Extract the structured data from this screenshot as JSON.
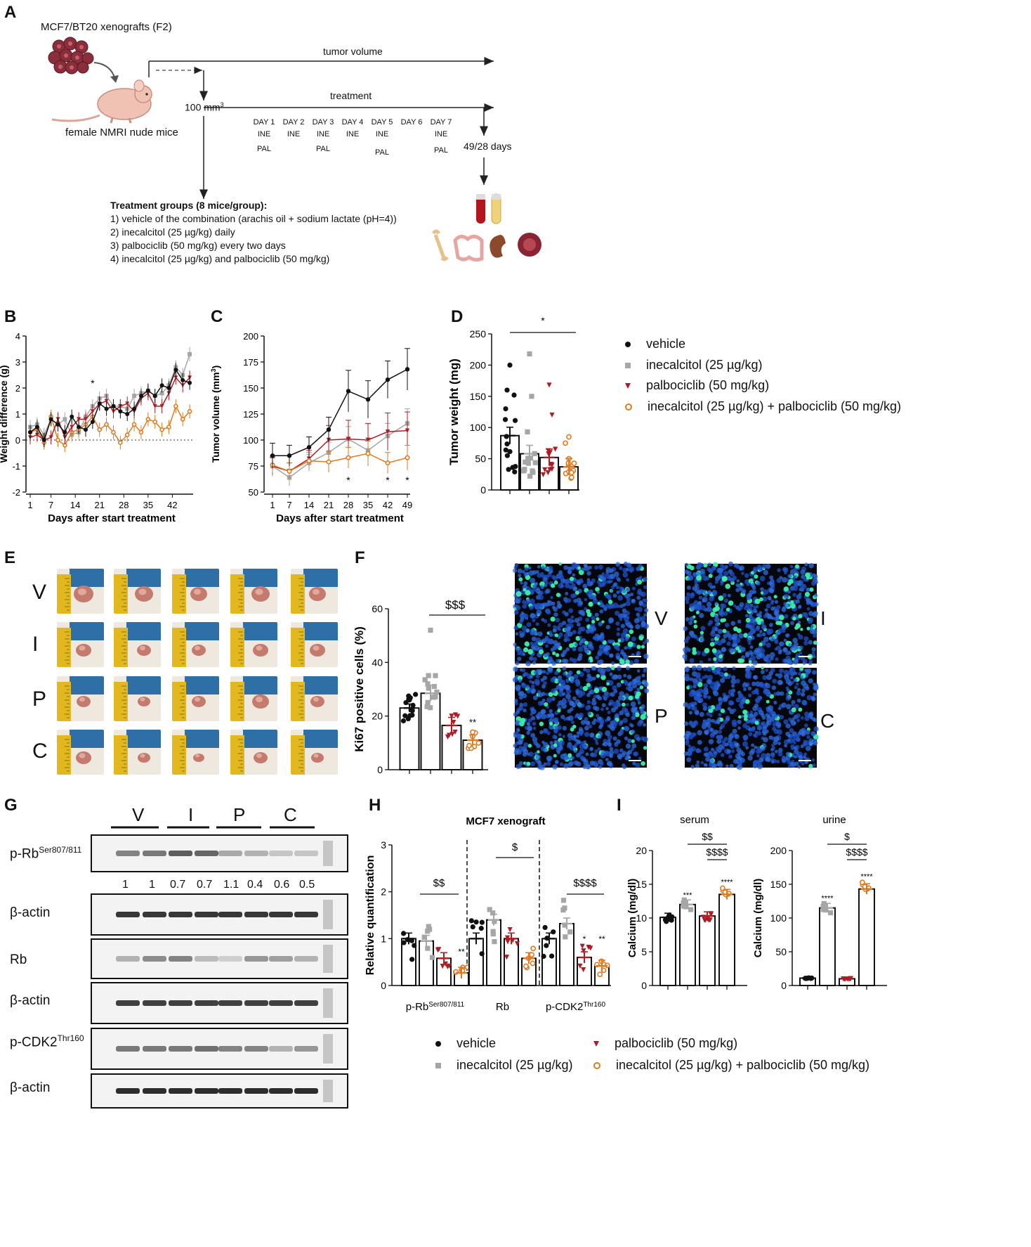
{
  "panels": {
    "A": "A",
    "B": "B",
    "C": "C",
    "D": "D",
    "E": "E",
    "F": "F",
    "G": "G",
    "H": "H",
    "I": "I"
  },
  "schematic": {
    "model": "MCF7/BT20 xenografts (F2)",
    "mice": "female NMRI nude mice",
    "tumor_volume": "tumor volume",
    "treatment": "treatment",
    "start_volume": "100 mm",
    "start_volume_sup": "3",
    "end_days": "49/28 days",
    "days": [
      {
        "day": "DAY 1",
        "line1": "INE",
        "line2": "PAL"
      },
      {
        "day": "DAY 2",
        "line1": "INE",
        "line2": ""
      },
      {
        "day": "DAY 3",
        "line1": "INE",
        "line2": "PAL"
      },
      {
        "day": "DAY 4",
        "line1": "INE",
        "line2": ""
      },
      {
        "day": "DAY 5",
        "line1": "INE",
        "line2": "PAL"
      },
      {
        "day": "DAY 6",
        "line1": "",
        "line2": ""
      },
      {
        "day": "DAY 7",
        "line1": "INE",
        "line2": "PAL"
      }
    ],
    "groups_title": "Treatment groups (8 mice/group):",
    "groups": [
      "1) vehicle of the combination (arachis oil + sodium lactate (pH=4))",
      "2) inecalcitol (25 µg/kg) daily",
      "3) palbociclib (50 mg/kg) every two days",
      "4) inecalcitol (25 µg/kg) and palbociclib (50 mg/kg)"
    ]
  },
  "legend": {
    "vehicle": "vehicle",
    "inecalcitol": "inecalcitol (25 µg/kg)",
    "palbociclib": "palbociclib (50 mg/kg)",
    "combination": "inecalcitol (25 µg/kg) + palbociclib (50 mg/kg)"
  },
  "colors": {
    "vehicle": "#111111",
    "inecalcitol": "#a6a6a6",
    "palbociclib": "#b01c23",
    "combination": "#e07a1f"
  },
  "photo_rows": [
    "V",
    "I",
    "P",
    "C"
  ],
  "micro_labels": [
    "V",
    "I",
    "P",
    "C"
  ],
  "western": {
    "lanes": [
      "V",
      "I",
      "P",
      "C"
    ],
    "rows": [
      {
        "label": "p-Rb",
        "sup": "Ser807/811"
      },
      {
        "label": "β-actin",
        "sup": ""
      },
      {
        "label": "Rb",
        "sup": ""
      },
      {
        "label": "β-actin",
        "sup": ""
      },
      {
        "label": "p-CDK2",
        "sup": "Thr160"
      },
      {
        "label": "β-actin",
        "sup": ""
      }
    ],
    "quant": [
      "1",
      "1",
      "0.7",
      "0.7",
      "1.1",
      "0.4",
      "0.6",
      "0.5"
    ]
  },
  "chart_data": [
    {
      "id": "B",
      "type": "line",
      "xlabel": "Days after start treatment",
      "ylabel": "Weight difference (g)",
      "xlim": [
        1,
        48
      ],
      "ylim": [
        -2,
        4
      ],
      "xticks": [
        1,
        7,
        14,
        21,
        28,
        35,
        42
      ],
      "yticks": [
        -2,
        -1,
        0,
        1,
        2,
        3,
        4
      ],
      "x": [
        1,
        3,
        5,
        7,
        9,
        11,
        13,
        15,
        17,
        19,
        21,
        23,
        25,
        27,
        29,
        31,
        33,
        35,
        37,
        39,
        41,
        43,
        45,
        47
      ],
      "series": [
        {
          "name": "vehicle",
          "values": [
            0.3,
            0.5,
            0,
            0.8,
            0.6,
            0.3,
            0.9,
            0.5,
            0.4,
            0.7,
            1.4,
            1.2,
            1.3,
            1.1,
            1.0,
            1.2,
            1.7,
            1.9,
            1.7,
            2.1,
            2.0,
            2.7,
            2.3,
            2.2
          ]
        },
        {
          "name": "inecalcitol",
          "values": [
            0.5,
            0.6,
            0.2,
            0.8,
            0.6,
            0.8,
            0.2,
            0.3,
            0.9,
            1.3,
            1.6,
            1.7,
            1.3,
            1.3,
            1.2,
            1.7,
            1.8,
            1.9,
            1.7,
            1.8,
            2.1,
            2.8,
            2.5,
            3.3
          ]
        },
        {
          "name": "palbociclib",
          "values": [
            0.1,
            0.2,
            0.0,
            0.1,
            0.8,
            0.1,
            0.5,
            0.8,
            0.8,
            1.1,
            1.4,
            1.5,
            1.1,
            1.3,
            1.4,
            1.1,
            1.6,
            1.8,
            1.3,
            1.3,
            1.8,
            2.4,
            2.1,
            2.4
          ]
        },
        {
          "name": "combination",
          "values": [
            0.3,
            0.4,
            -0.1,
            0.9,
            0.0,
            -0.2,
            0.3,
            0.4,
            0.6,
            0.9,
            0.4,
            0.6,
            0.3,
            -0.1,
            0.2,
            0.6,
            0.3,
            0.8,
            0.7,
            0.4,
            0.5,
            1.3,
            0.8,
            1.1
          ]
        }
      ],
      "annotations": [
        "*"
      ]
    },
    {
      "id": "C",
      "type": "line",
      "xlabel": "Days after start treatment",
      "ylabel": "Tumor volume (mm3)",
      "ylim": [
        50,
        200
      ],
      "x": [
        1,
        7,
        14,
        21,
        28,
        35,
        42,
        49
      ],
      "series": [
        {
          "name": "vehicle",
          "values": [
            85,
            85,
            93,
            110,
            147,
            139,
            158,
            168
          ]
        },
        {
          "name": "inecalcitol",
          "values": [
            75,
            64,
            78,
            88,
            101,
            90,
            104,
            116
          ]
        },
        {
          "name": "palbociclib",
          "values": [
            75,
            70,
            82,
            100,
            101,
            100,
            108,
            109
          ]
        },
        {
          "name": "combination",
          "values": [
            76,
            70,
            80,
            79,
            83,
            87,
            78,
            83
          ]
        }
      ],
      "annotations": [
        "*",
        "*",
        "*"
      ]
    },
    {
      "id": "D",
      "type": "bar",
      "ylabel": "Tumor weight (mg)",
      "ylim": [
        0,
        250
      ],
      "yticks": [
        0,
        50,
        100,
        150,
        200,
        250
      ],
      "series": [
        {
          "name": "vehicle",
          "values": [
            87
          ]
        },
        {
          "name": "inecalcitol",
          "values": [
            58
          ]
        },
        {
          "name": "palbociclib",
          "values": [
            52
          ]
        },
        {
          "name": "combination",
          "values": [
            37
          ]
        }
      ],
      "annotations": [
        "*"
      ]
    },
    {
      "id": "F",
      "type": "bar",
      "ylabel": "Ki67 positive cells (%)",
      "ylim": [
        0,
        60
      ],
      "yticks": [
        0,
        20,
        40,
        60
      ],
      "series": [
        {
          "name": "vehicle",
          "values": [
            23
          ]
        },
        {
          "name": "inecalcitol",
          "values": [
            28.5
          ]
        },
        {
          "name": "palbociclib",
          "values": [
            16.5
          ]
        },
        {
          "name": "combination",
          "values": [
            11
          ]
        }
      ],
      "annotations": [
        "$$$",
        "**"
      ]
    },
    {
      "id": "H",
      "type": "bar",
      "title": "MCF7 xenograft",
      "ylabel": "Relative quantification",
      "ylim": [
        0,
        3
      ],
      "yticks": [
        0,
        1,
        2,
        3
      ],
      "categories": [
        "p-Rb",
        "Rb",
        "p-CDK2"
      ],
      "category_sups": [
        "Ser807/811",
        "",
        "Thr160"
      ],
      "series": [
        {
          "name": "vehicle",
          "values": [
            1.0,
            1.0,
            1.0
          ]
        },
        {
          "name": "inecalcitol",
          "values": [
            0.95,
            1.4,
            1.32
          ]
        },
        {
          "name": "palbociclib",
          "values": [
            0.58,
            1.0,
            0.6
          ]
        },
        {
          "name": "combination",
          "values": [
            0.27,
            0.58,
            0.42
          ]
        }
      ],
      "annotations": [
        "$$",
        "**",
        "$",
        "$$$$",
        "*",
        "**"
      ]
    },
    {
      "id": "I-serum",
      "type": "bar",
      "title": "serum",
      "ylabel": "Calcium (mg/dl)",
      "ylim": [
        0,
        20
      ],
      "yticks": [
        0,
        5,
        10,
        15,
        20
      ],
      "series": [
        {
          "name": "vehicle",
          "values": [
            10.1
          ]
        },
        {
          "name": "inecalcitol",
          "values": [
            12.0
          ]
        },
        {
          "name": "palbociclib",
          "values": [
            10.3
          ]
        },
        {
          "name": "combination",
          "values": [
            13.5
          ]
        }
      ],
      "annotations": [
        "$$",
        "$$$$",
        "***",
        "****"
      ]
    },
    {
      "id": "I-urine",
      "type": "bar",
      "title": "urine",
      "ylabel": "Calcium (mg/dl)",
      "ylim": [
        0,
        200
      ],
      "yticks": [
        0,
        50,
        100,
        150,
        200
      ],
      "series": [
        {
          "name": "vehicle",
          "values": [
            11
          ]
        },
        {
          "name": "inecalcitol",
          "values": [
            115
          ]
        },
        {
          "name": "palbociclib",
          "values": [
            10
          ]
        },
        {
          "name": "combination",
          "values": [
            143
          ]
        }
      ],
      "annotations": [
        "$",
        "$$$$",
        "****",
        "****"
      ]
    }
  ]
}
